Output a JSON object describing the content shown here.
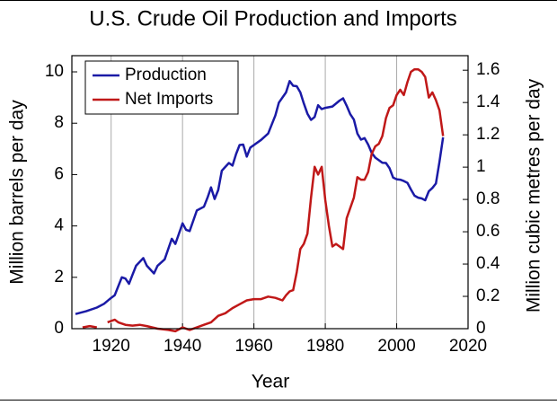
{
  "chart_data": {
    "type": "line",
    "title": "U.S. Crude Oil Production and Imports",
    "xlabel": "Year",
    "ylabel": "Million barrels per day",
    "y2label": "Million cubic metres per day",
    "xlim": [
      1909,
      2020
    ],
    "xticks": [
      1920,
      1940,
      1960,
      1980,
      2000,
      2020
    ],
    "ylim": [
      0,
      10.63
    ],
    "yticks": [
      0,
      2,
      4,
      6,
      8,
      10
    ],
    "y2lim": [
      0,
      1.69
    ],
    "y2ticks": [
      0,
      0.2,
      0.4,
      0.6,
      0.8,
      1,
      1.2,
      1.4,
      1.6
    ],
    "grid": "x",
    "legend": "upper left",
    "series": [
      {
        "name": "Production",
        "color": "#1a1aa6",
        "x": [
          1910,
          1913,
          1916,
          1918,
          1920,
          1921,
          1923,
          1924,
          1925,
          1926,
          1927,
          1929,
          1930,
          1932,
          1933,
          1935,
          1937,
          1938,
          1940,
          1941,
          1942,
          1944,
          1946,
          1947,
          1948,
          1949,
          1950,
          1951,
          1953,
          1954,
          1955,
          1956,
          1957,
          1958,
          1959,
          1962,
          1964,
          1966,
          1967,
          1969,
          1970,
          1971,
          1972,
          1973,
          1974,
          1975,
          1976,
          1977,
          1978,
          1979,
          1980,
          1982,
          1984,
          1985,
          1986,
          1987,
          1988,
          1989,
          1990,
          1991,
          1992,
          1993,
          1994,
          1995,
          1996,
          1997,
          1998,
          1999,
          2000,
          2001,
          2002,
          2003,
          2004,
          2005,
          2006,
          2007,
          2008,
          2009,
          2010,
          2011,
          2012,
          2013
        ],
        "values": [
          0.57,
          0.68,
          0.82,
          0.97,
          1.2,
          1.3,
          2.0,
          1.95,
          1.75,
          2.1,
          2.45,
          2.75,
          2.45,
          2.15,
          2.45,
          2.7,
          3.5,
          3.3,
          4.1,
          3.85,
          3.8,
          4.6,
          4.75,
          5.1,
          5.5,
          5.05,
          5.4,
          6.15,
          6.45,
          6.35,
          6.8,
          7.15,
          7.17,
          6.7,
          7.05,
          7.35,
          7.6,
          8.3,
          8.8,
          9.2,
          9.64,
          9.46,
          9.44,
          9.2,
          8.77,
          8.37,
          8.13,
          8.24,
          8.7,
          8.55,
          8.6,
          8.65,
          8.88,
          8.97,
          8.68,
          8.35,
          8.14,
          7.6,
          7.36,
          7.42,
          7.17,
          6.85,
          6.66,
          6.56,
          6.46,
          6.45,
          6.25,
          5.88,
          5.82,
          5.8,
          5.75,
          5.68,
          5.42,
          5.18,
          5.1,
          5.07,
          5.0,
          5.35,
          5.48,
          5.65,
          6.5,
          7.45
        ]
      },
      {
        "name": "Net Imports",
        "color": "#c01818",
        "x": [
          1912,
          1914,
          1916,
          1918,
          1919,
          1920,
          1921,
          1922,
          1924,
          1926,
          1928,
          1930,
          1933,
          1936,
          1938,
          1940,
          1942,
          1944,
          1946,
          1948,
          1950,
          1952,
          1954,
          1956,
          1958,
          1960,
          1962,
          1964,
          1966,
          1968,
          1969,
          1970,
          1971,
          1972,
          1973,
          1974,
          1975,
          1976,
          1977,
          1978,
          1979,
          1980,
          1981,
          1982,
          1983,
          1984,
          1985,
          1986,
          1987,
          1988,
          1989,
          1990,
          1991,
          1992,
          1993,
          1994,
          1995,
          1996,
          1997,
          1998,
          1999,
          2000,
          2001,
          2002,
          2003,
          2004,
          2005,
          2006,
          2007,
          2008,
          2009,
          2010,
          2011,
          2012,
          2013
        ],
        "values": [
          0.05,
          0.1,
          0.05,
          null,
          0.25,
          0.3,
          0.35,
          0.25,
          0.15,
          0.12,
          0.15,
          0.1,
          0.0,
          -0.05,
          -0.1,
          0.05,
          -0.05,
          0.05,
          0.15,
          0.25,
          0.5,
          0.6,
          0.8,
          0.95,
          1.1,
          1.15,
          1.15,
          1.25,
          1.2,
          1.1,
          1.3,
          1.45,
          1.5,
          2.2,
          3.1,
          3.3,
          3.7,
          5.1,
          6.3,
          6.0,
          6.3,
          5.0,
          4.0,
          3.2,
          3.3,
          3.2,
          3.1,
          4.3,
          4.7,
          5.1,
          5.9,
          5.8,
          5.8,
          6.1,
          6.8,
          7.1,
          7.2,
          7.5,
          8.2,
          8.6,
          8.7,
          9.1,
          9.3,
          9.1,
          9.6,
          10.0,
          10.1,
          10.1,
          10.0,
          9.8,
          9.0,
          9.2,
          8.9,
          8.5,
          7.5
        ]
      }
    ]
  }
}
